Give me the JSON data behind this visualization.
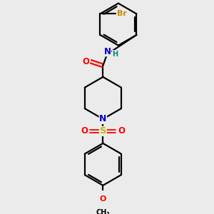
{
  "bg_color": "#ebebeb",
  "bond_color": "#000000",
  "bond_width": 1.6,
  "atom_colors": {
    "C": "#000000",
    "N": "#0000cc",
    "O": "#ff0000",
    "S": "#bbbb00",
    "Br": "#cc8800",
    "NH": "#0000cc",
    "H": "#008888"
  },
  "font_size": 8.5,
  "fig_size": [
    3.0,
    3.0
  ],
  "dpi": 100
}
